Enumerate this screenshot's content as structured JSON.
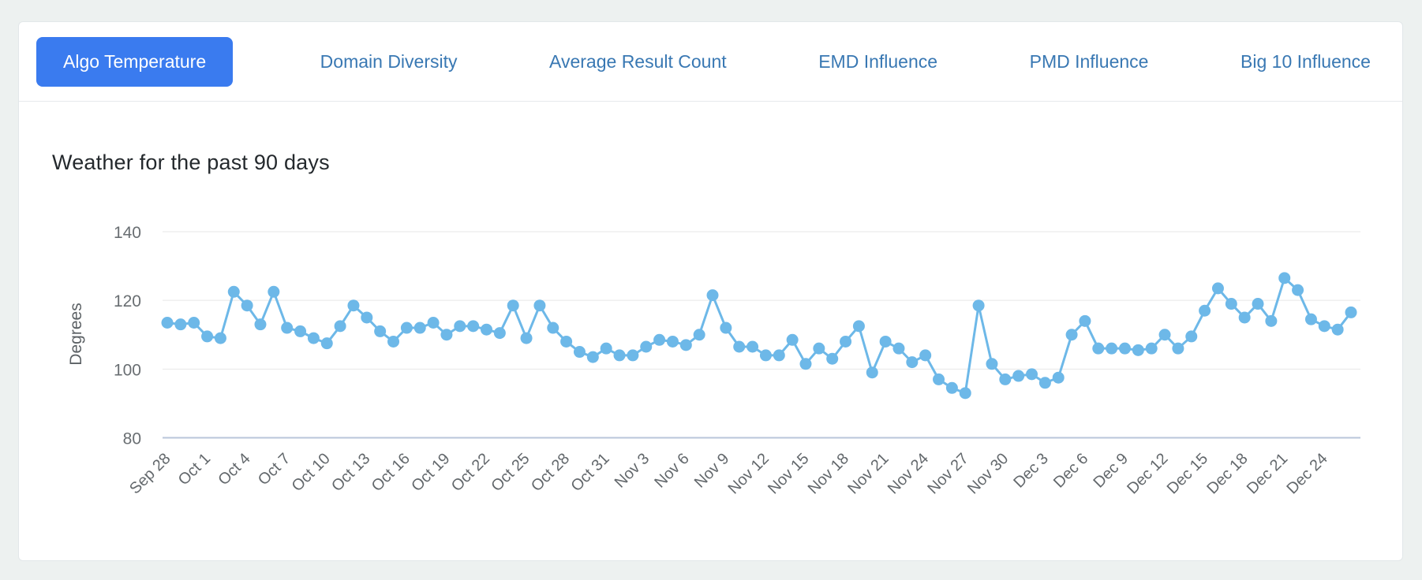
{
  "tabs": {
    "items": [
      {
        "label": "Algo Temperature",
        "active": true
      },
      {
        "label": "Domain Diversity",
        "active": false
      },
      {
        "label": "Average Result Count",
        "active": false
      },
      {
        "label": "EMD Influence",
        "active": false
      },
      {
        "label": "PMD Influence",
        "active": false
      },
      {
        "label": "Big 10 Influence",
        "active": false
      }
    ]
  },
  "chart": {
    "title": "Weather for the past 90 days"
  },
  "colors": {
    "active_tab": "#3a7bef",
    "inactive_tab_text": "#3978b3",
    "series": "#6db8e8",
    "axis_line": "#b9c6da",
    "grid_line": "#e7e7e7",
    "page_background": "#edf1f0"
  },
  "chart_data": {
    "type": "line",
    "title": "Weather for the past 90 days",
    "xlabel": "",
    "ylabel": "Degrees",
    "ylim": [
      80,
      140
    ],
    "yticks": [
      80,
      100,
      120,
      140
    ],
    "grid": "horizontal",
    "legend_position": "none",
    "x_tick_interval_points": 3,
    "x_tick_labels": [
      "Sep 28",
      "Oct 1",
      "Oct 4",
      "Oct 7",
      "Oct 10",
      "Oct 13",
      "Oct 16",
      "Oct 19",
      "Oct 22",
      "Oct 25",
      "Oct 28",
      "Oct 31",
      "Nov 3",
      "Nov 6",
      "Nov 9",
      "Nov 12",
      "Nov 15",
      "Nov 18",
      "Nov 21",
      "Nov 24",
      "Nov 27",
      "Nov 30",
      "Dec 3",
      "Dec 6",
      "Dec 9",
      "Dec 12",
      "Dec 15",
      "Dec 18",
      "Dec 21",
      "Dec 24"
    ],
    "series": [
      {
        "name": "Algo Temperature",
        "color": "#6db8e8",
        "values": [
          113.5,
          113,
          113.5,
          109.5,
          109,
          122.5,
          118.5,
          113,
          122.5,
          112,
          111,
          109,
          107.5,
          112.5,
          118.5,
          115,
          111,
          108,
          112,
          112,
          113.5,
          110,
          112.5,
          112.5,
          111.5,
          110.5,
          118.5,
          109,
          118.5,
          112,
          108,
          105,
          103.5,
          106,
          104,
          104,
          106.5,
          108.5,
          108,
          107,
          110,
          121.5,
          112,
          106.5,
          106.5,
          104,
          104,
          108.5,
          101.5,
          106,
          103,
          108,
          112.5,
          99,
          108,
          106,
          102,
          104,
          97,
          94.5,
          93,
          118.5,
          101.5,
          97,
          98,
          98.5,
          96,
          97.5,
          110,
          114,
          106,
          106,
          106,
          105.5,
          106,
          110,
          106,
          109.5,
          117,
          123.5,
          119,
          115,
          119,
          114,
          126.5,
          123,
          114.5,
          112.5,
          111.5,
          116.5
        ]
      }
    ]
  }
}
